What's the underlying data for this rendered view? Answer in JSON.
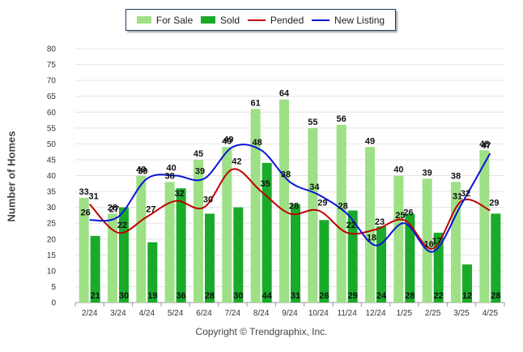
{
  "chart_data": {
    "type": "bar",
    "ylabel": "Number of Homes",
    "xlabel": "",
    "ylim": [
      0,
      80
    ],
    "ytick_step": 5,
    "grid": true,
    "legend_position": "top-center",
    "categories": [
      "2/24",
      "3/24",
      "4/24",
      "5/24",
      "6/24",
      "7/24",
      "8/24",
      "9/24",
      "10/24",
      "11/24",
      "12/24",
      "1/25",
      "2/25",
      "3/25",
      "4/25"
    ],
    "series": [
      {
        "name": "For Sale",
        "kind": "bar",
        "color": "#9de086",
        "values": [
          33,
          28,
          40,
          38,
          45,
          49,
          61,
          64,
          55,
          56,
          49,
          40,
          39,
          38,
          48
        ]
      },
      {
        "name": "Sold",
        "kind": "bar",
        "color": "#1aaa2a",
        "values": [
          21,
          30,
          19,
          36,
          28,
          30,
          44,
          31,
          26,
          29,
          24,
          28,
          22,
          12,
          28
        ]
      },
      {
        "name": "Pended",
        "kind": "line",
        "color": "#c00000",
        "values": [
          31,
          22,
          27,
          32,
          30,
          42,
          35,
          28,
          29,
          22,
          23,
          26,
          17,
          32,
          29
        ]
      },
      {
        "name": "New Listing",
        "kind": "line",
        "color": "#0a14d8",
        "values": [
          26,
          27,
          39,
          40,
          39,
          49,
          48,
          38,
          34,
          28,
          18,
          25,
          16,
          31,
          47
        ]
      }
    ]
  },
  "legend": {
    "for_sale": "For Sale",
    "sold": "Sold",
    "pended": "Pended",
    "new_listing": "New Listing"
  },
  "footer": {
    "copyright": "Copyright © Trendgraphix, Inc."
  }
}
